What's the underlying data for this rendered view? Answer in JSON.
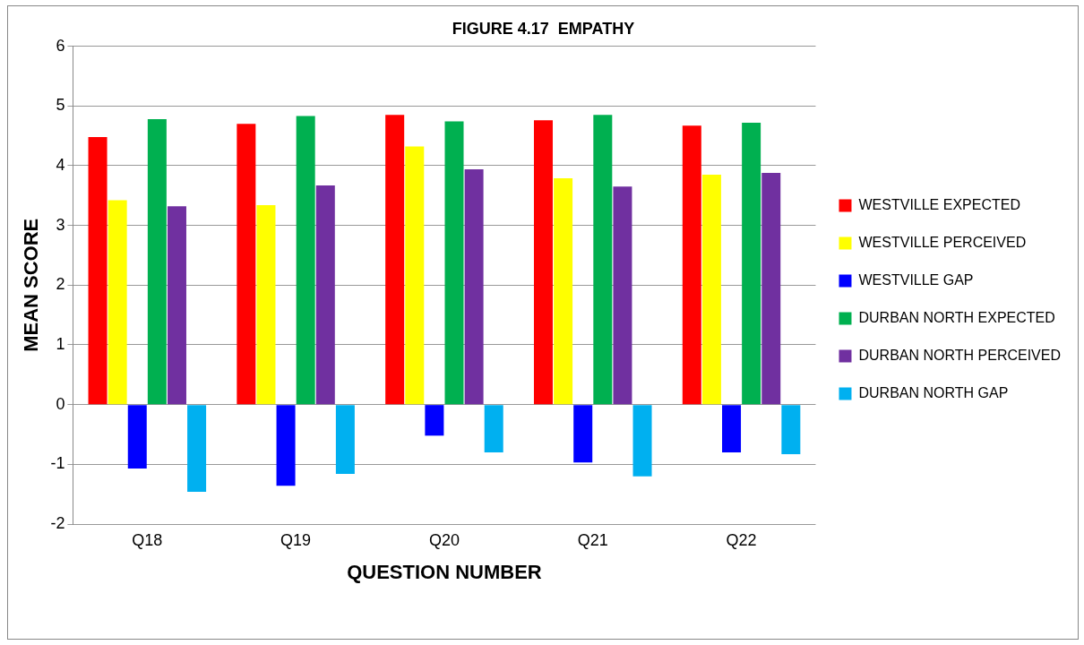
{
  "chart_data": {
    "type": "bar",
    "title": "FIGURE 4.17  EMPATHY",
    "xlabel": "QUESTION NUMBER",
    "ylabel": "MEAN SCORE",
    "categories": [
      "Q18",
      "Q19",
      "Q20",
      "Q21",
      "Q22"
    ],
    "series": [
      {
        "name": "WESTVILLE EXPECTED",
        "color": "#ff0000",
        "values": [
          4.48,
          4.7,
          4.85,
          4.76,
          4.67
        ]
      },
      {
        "name": "WESTVILLE PERCEIVED",
        "color": "#ffff00",
        "values": [
          3.42,
          3.34,
          4.32,
          3.79,
          3.85
        ]
      },
      {
        "name": "WESTVILLE GAP",
        "color": "#0000ff",
        "values": [
          -1.07,
          -1.36,
          -0.52,
          -0.97,
          -0.8
        ]
      },
      {
        "name": "DURBAN NORTH EXPECTED",
        "color": "#00b050",
        "values": [
          4.78,
          4.83,
          4.74,
          4.85,
          4.72
        ]
      },
      {
        "name": "DURBAN NORTH PERCEIVED",
        "color": "#7030a0",
        "values": [
          3.32,
          3.67,
          3.94,
          3.65,
          3.88
        ]
      },
      {
        "name": "DURBAN NORTH GAP",
        "color": "#00b0f0",
        "values": [
          -1.46,
          -1.16,
          -0.8,
          -1.2,
          -0.83
        ]
      }
    ],
    "ylim": [
      -2,
      6
    ],
    "yticks": [
      -2,
      -1,
      0,
      1,
      2,
      3,
      4,
      5,
      6
    ],
    "grid": "y",
    "legend": "right"
  }
}
